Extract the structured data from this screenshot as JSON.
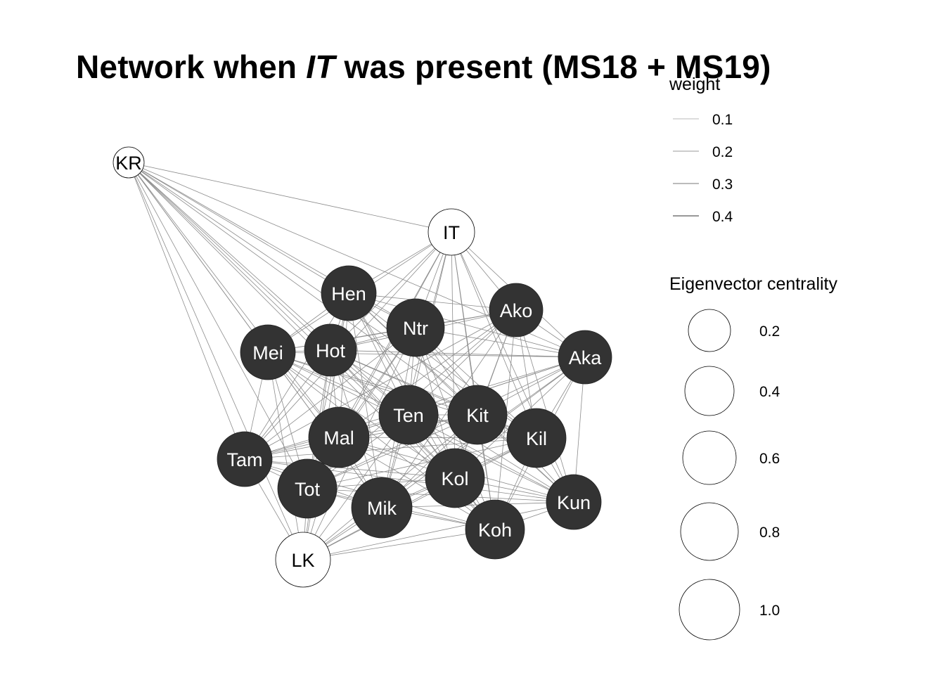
{
  "title": {
    "prefix": "Network when ",
    "emphasis": "IT",
    "suffix": " was present (MS18 + MS19)"
  },
  "legend": {
    "weight_title": "weight",
    "weight_items": [
      {
        "label": "0.1",
        "value": 0.1
      },
      {
        "label": "0.2",
        "value": 0.2
      },
      {
        "label": "0.3",
        "value": 0.3
      },
      {
        "label": "0.4",
        "value": 0.4
      }
    ],
    "centrality_title": "Eigenvector centrality",
    "centrality_items": [
      {
        "label": "0.2",
        "value": 0.2
      },
      {
        "label": "0.4",
        "value": 0.4
      },
      {
        "label": "0.6",
        "value": 0.6
      },
      {
        "label": "0.8",
        "value": 0.8
      },
      {
        "label": "1.0",
        "value": 1.0
      }
    ]
  },
  "colors": {
    "node_dark": "#333333",
    "node_light": "#ffffff",
    "edge": "#8c8c8c",
    "label_dark": "#ffffff",
    "label_light": "#000000"
  },
  "nodes": [
    {
      "id": "KR",
      "label": "KR",
      "group": "light",
      "centrality": 0.1
    },
    {
      "id": "IT",
      "label": "IT",
      "group": "light",
      "centrality": 0.4
    },
    {
      "id": "LK",
      "label": "LK",
      "group": "light",
      "centrality": 0.6
    },
    {
      "id": "Hen",
      "label": "Hen",
      "group": "dark",
      "centrality": 0.55
    },
    {
      "id": "Ako",
      "label": "Ako",
      "group": "dark",
      "centrality": 0.5
    },
    {
      "id": "Ntr",
      "label": "Ntr",
      "group": "dark",
      "centrality": 0.62
    },
    {
      "id": "Mei",
      "label": "Mei",
      "group": "dark",
      "centrality": 0.55
    },
    {
      "id": "Hot",
      "label": "Hot",
      "group": "dark",
      "centrality": 0.5
    },
    {
      "id": "Aka",
      "label": "Aka",
      "group": "dark",
      "centrality": 0.55
    },
    {
      "id": "Ten",
      "label": "Ten",
      "group": "dark",
      "centrality": 0.7
    },
    {
      "id": "Kit",
      "label": "Kit",
      "group": "dark",
      "centrality": 0.72
    },
    {
      "id": "Mal",
      "label": "Mal",
      "group": "dark",
      "centrality": 0.78
    },
    {
      "id": "Kil",
      "label": "Kil",
      "group": "dark",
      "centrality": 0.75
    },
    {
      "id": "Tam",
      "label": "Tam",
      "group": "dark",
      "centrality": 0.6
    },
    {
      "id": "Kol",
      "label": "Kol",
      "group": "dark",
      "centrality": 0.7
    },
    {
      "id": "Tot",
      "label": "Tot",
      "group": "dark",
      "centrality": 0.75
    },
    {
      "id": "Kun",
      "label": "Kun",
      "group": "dark",
      "centrality": 0.6
    },
    {
      "id": "Mik",
      "label": "Mik",
      "group": "dark",
      "centrality": 0.78
    },
    {
      "id": "Koh",
      "label": "Koh",
      "group": "dark",
      "centrality": 0.72
    }
  ],
  "edges": [
    [
      "KR",
      "IT"
    ],
    [
      "KR",
      "LK"
    ],
    [
      "KR",
      "Hen"
    ],
    [
      "KR",
      "Mei"
    ],
    [
      "KR",
      "Hot"
    ],
    [
      "KR",
      "Ntr"
    ],
    [
      "KR",
      "Ten"
    ],
    [
      "KR",
      "Kit"
    ],
    [
      "KR",
      "Mal"
    ],
    [
      "KR",
      "Tam"
    ],
    [
      "KR",
      "Tot"
    ],
    [
      "KR",
      "Mik"
    ],
    [
      "KR",
      "Kol"
    ],
    [
      "KR",
      "Aka"
    ],
    [
      "KR",
      "Kil"
    ],
    [
      "KR",
      "Koh"
    ],
    [
      "IT",
      "Hen"
    ],
    [
      "IT",
      "Ako"
    ],
    [
      "IT",
      "Ntr"
    ],
    [
      "IT",
      "Mei"
    ],
    [
      "IT",
      "Hot"
    ],
    [
      "IT",
      "Aka"
    ],
    [
      "IT",
      "Ten"
    ],
    [
      "IT",
      "Kit"
    ],
    [
      "IT",
      "Mal"
    ],
    [
      "IT",
      "Kil"
    ],
    [
      "IT",
      "Tam"
    ],
    [
      "IT",
      "Kol"
    ],
    [
      "IT",
      "Tot"
    ],
    [
      "IT",
      "Kun"
    ],
    [
      "IT",
      "Mik"
    ],
    [
      "IT",
      "Koh"
    ],
    [
      "LK",
      "Mei"
    ],
    [
      "LK",
      "Hot"
    ],
    [
      "LK",
      "Hen"
    ],
    [
      "LK",
      "Ntr"
    ],
    [
      "LK",
      "Ten"
    ],
    [
      "LK",
      "Kit"
    ],
    [
      "LK",
      "Mal"
    ],
    [
      "LK",
      "Tam"
    ],
    [
      "LK",
      "Tot"
    ],
    [
      "LK",
      "Mik"
    ],
    [
      "LK",
      "Kol"
    ],
    [
      "LK",
      "Koh"
    ],
    [
      "LK",
      "Kun"
    ],
    [
      "LK",
      "Kil"
    ],
    [
      "LK",
      "Aka"
    ],
    [
      "Hen",
      "Ako"
    ],
    [
      "Hen",
      "Ntr"
    ],
    [
      "Hen",
      "Mei"
    ],
    [
      "Hen",
      "Hot"
    ],
    [
      "Hen",
      "Aka"
    ],
    [
      "Hen",
      "Ten"
    ],
    [
      "Hen",
      "Kit"
    ],
    [
      "Hen",
      "Mal"
    ],
    [
      "Hen",
      "Kil"
    ],
    [
      "Hen",
      "Tam"
    ],
    [
      "Hen",
      "Kol"
    ],
    [
      "Hen",
      "Tot"
    ],
    [
      "Hen",
      "Kun"
    ],
    [
      "Hen",
      "Mik"
    ],
    [
      "Hen",
      "Koh"
    ],
    [
      "Ako",
      "Ntr"
    ],
    [
      "Ako",
      "Aka"
    ],
    [
      "Ako",
      "Ten"
    ],
    [
      "Ako",
      "Kit"
    ],
    [
      "Ako",
      "Hot"
    ],
    [
      "Ako",
      "Mei"
    ],
    [
      "Ako",
      "Mal"
    ],
    [
      "Ako",
      "Kil"
    ],
    [
      "Ako",
      "Kol"
    ],
    [
      "Ako",
      "Kun"
    ],
    [
      "Ako",
      "Tam"
    ],
    [
      "Ako",
      "Tot"
    ],
    [
      "Ako",
      "Mik"
    ],
    [
      "Ako",
      "Koh"
    ],
    [
      "Ntr",
      "Mei"
    ],
    [
      "Ntr",
      "Hot"
    ],
    [
      "Ntr",
      "Aka"
    ],
    [
      "Ntr",
      "Ten"
    ],
    [
      "Ntr",
      "Kit"
    ],
    [
      "Ntr",
      "Mal"
    ],
    [
      "Ntr",
      "Kil"
    ],
    [
      "Ntr",
      "Tam"
    ],
    [
      "Ntr",
      "Kol"
    ],
    [
      "Ntr",
      "Tot"
    ],
    [
      "Ntr",
      "Kun"
    ],
    [
      "Ntr",
      "Mik"
    ],
    [
      "Ntr",
      "Koh"
    ],
    [
      "Mei",
      "Hot"
    ],
    [
      "Mei",
      "Aka"
    ],
    [
      "Mei",
      "Ten"
    ],
    [
      "Mei",
      "Kit"
    ],
    [
      "Mei",
      "Mal"
    ],
    [
      "Mei",
      "Kil"
    ],
    [
      "Mei",
      "Tam"
    ],
    [
      "Mei",
      "Kol"
    ],
    [
      "Mei",
      "Tot"
    ],
    [
      "Mei",
      "Kun"
    ],
    [
      "Mei",
      "Mik"
    ],
    [
      "Mei",
      "Koh"
    ],
    [
      "Hot",
      "Aka"
    ],
    [
      "Hot",
      "Ten"
    ],
    [
      "Hot",
      "Kit"
    ],
    [
      "Hot",
      "Mal"
    ],
    [
      "Hot",
      "Kil"
    ],
    [
      "Hot",
      "Tam"
    ],
    [
      "Hot",
      "Kol"
    ],
    [
      "Hot",
      "Tot"
    ],
    [
      "Hot",
      "Kun"
    ],
    [
      "Hot",
      "Mik"
    ],
    [
      "Hot",
      "Koh"
    ],
    [
      "Aka",
      "Ten"
    ],
    [
      "Aka",
      "Kit"
    ],
    [
      "Aka",
      "Mal"
    ],
    [
      "Aka",
      "Kil"
    ],
    [
      "Aka",
      "Tam"
    ],
    [
      "Aka",
      "Kol"
    ],
    [
      "Aka",
      "Tot"
    ],
    [
      "Aka",
      "Kun"
    ],
    [
      "Aka",
      "Mik"
    ],
    [
      "Aka",
      "Koh"
    ],
    [
      "Ten",
      "Kit"
    ],
    [
      "Ten",
      "Mal"
    ],
    [
      "Ten",
      "Kil"
    ],
    [
      "Ten",
      "Tam"
    ],
    [
      "Ten",
      "Kol"
    ],
    [
      "Ten",
      "Tot"
    ],
    [
      "Ten",
      "Kun"
    ],
    [
      "Ten",
      "Mik"
    ],
    [
      "Ten",
      "Koh"
    ],
    [
      "Kit",
      "Mal"
    ],
    [
      "Kit",
      "Kil"
    ],
    [
      "Kit",
      "Tam"
    ],
    [
      "Kit",
      "Kol"
    ],
    [
      "Kit",
      "Tot"
    ],
    [
      "Kit",
      "Kun"
    ],
    [
      "Kit",
      "Mik"
    ],
    [
      "Kit",
      "Koh"
    ],
    [
      "Mal",
      "Kil"
    ],
    [
      "Mal",
      "Tam"
    ],
    [
      "Mal",
      "Kol"
    ],
    [
      "Mal",
      "Tot"
    ],
    [
      "Mal",
      "Kun"
    ],
    [
      "Mal",
      "Mik"
    ],
    [
      "Mal",
      "Koh"
    ],
    [
      "Kil",
      "Tam"
    ],
    [
      "Kil",
      "Kol"
    ],
    [
      "Kil",
      "Tot"
    ],
    [
      "Kil",
      "Kun"
    ],
    [
      "Kil",
      "Mik"
    ],
    [
      "Kil",
      "Koh"
    ],
    [
      "Tam",
      "Kol"
    ],
    [
      "Tam",
      "Tot"
    ],
    [
      "Tam",
      "Kun"
    ],
    [
      "Tam",
      "Mik"
    ],
    [
      "Tam",
      "Koh"
    ],
    [
      "Kol",
      "Tot"
    ],
    [
      "Kol",
      "Kun"
    ],
    [
      "Kol",
      "Mik"
    ],
    [
      "Kol",
      "Koh"
    ],
    [
      "Tot",
      "Kun"
    ],
    [
      "Tot",
      "Mik"
    ],
    [
      "Tot",
      "Koh"
    ],
    [
      "Kun",
      "Mik"
    ],
    [
      "Kun",
      "Koh"
    ],
    [
      "Mik",
      "Koh"
    ]
  ]
}
